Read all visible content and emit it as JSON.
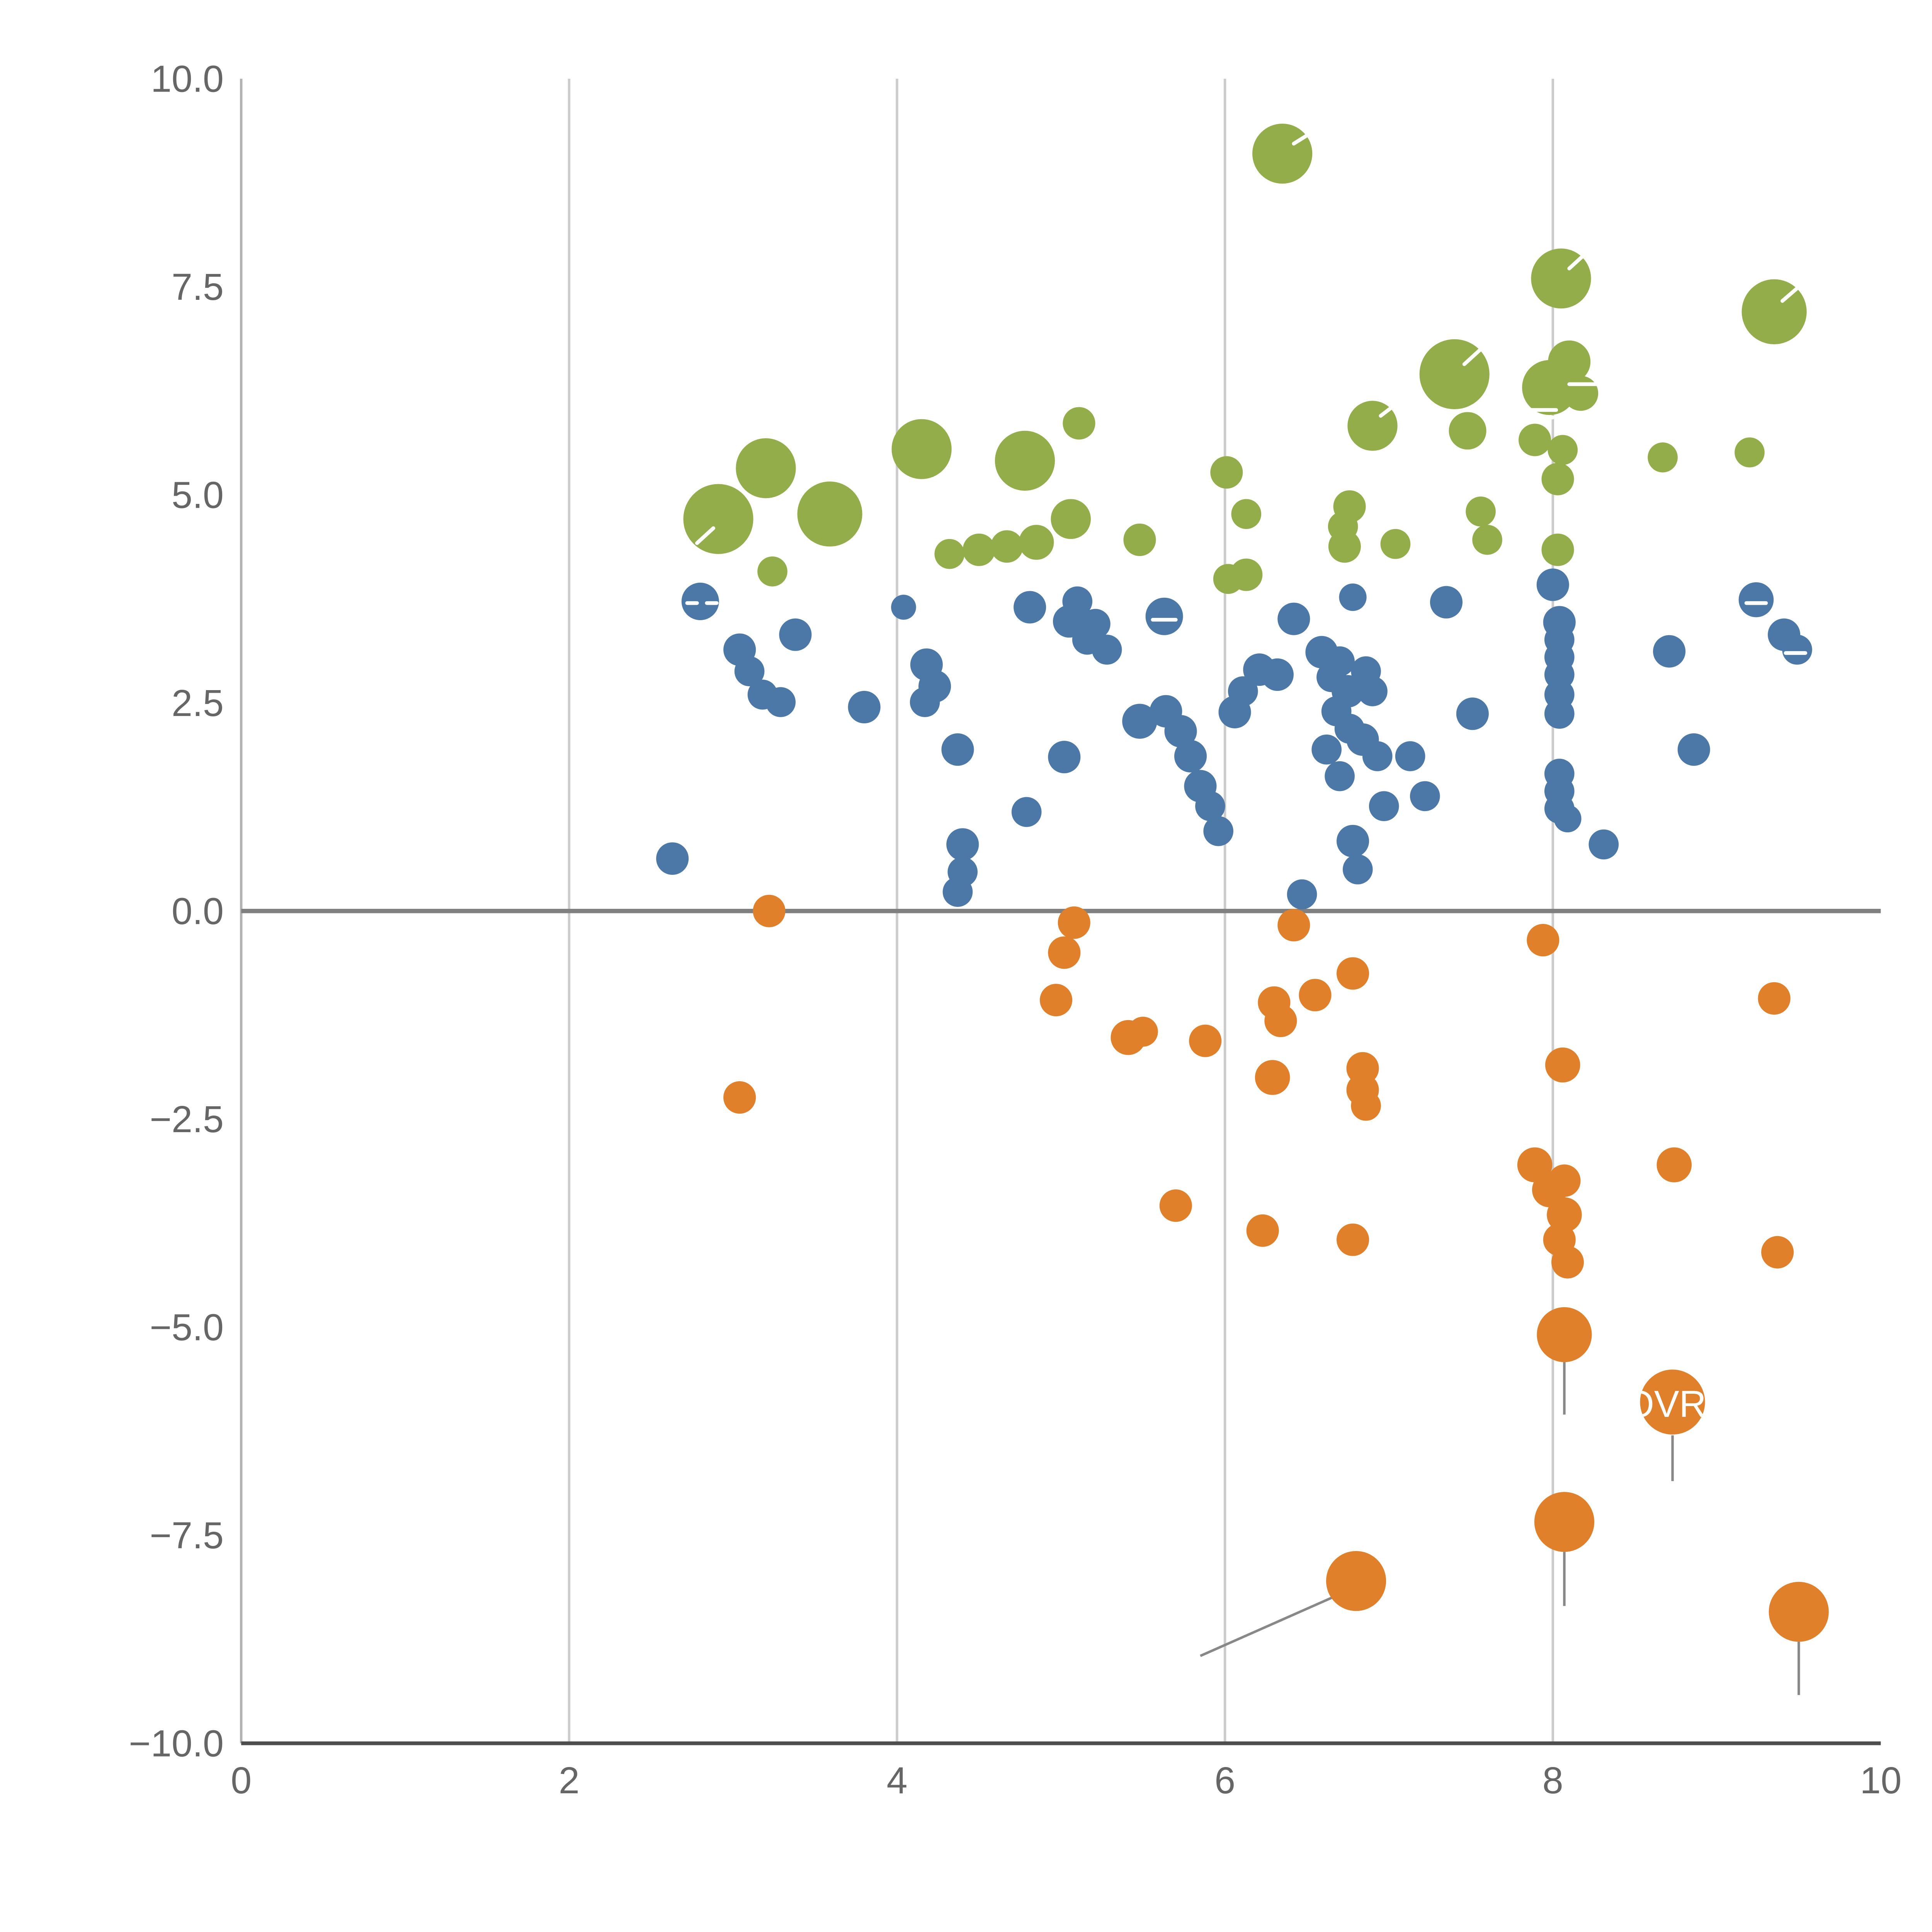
{
  "chart_data": {
    "type": "scatter",
    "title": "",
    "xlabel": "",
    "ylabel": "",
    "xlim": [
      0,
      10
    ],
    "ylim": [
      -10,
      10
    ],
    "x_ticks": {
      "values": [
        0,
        2,
        4,
        6,
        8,
        10
      ],
      "labels": [
        "0",
        "2",
        "4",
        "6",
        "8",
        "10"
      ]
    },
    "y_ticks": {
      "values": [
        10,
        7.5,
        5,
        2.5,
        0,
        -2.5,
        -5,
        -7.5,
        -10
      ],
      "labels": [
        "10.0",
        "7.5",
        "5.0",
        "2.5",
        "0.0",
        "−2.5",
        "−5.0",
        "−7.5",
        "−10.0"
      ]
    },
    "grid": {
      "vertical_values": [
        2,
        4,
        6,
        8
      ],
      "horizontal": false
    },
    "zero_line_y": 0,
    "legend": "none",
    "series": [
      {
        "name": "green",
        "color": "#94ad4b",
        "points": [
          [
            6.35,
            9.1,
            24
          ],
          [
            8.05,
            7.6,
            24
          ],
          [
            9.35,
            7.2,
            26
          ],
          [
            7.4,
            6.45,
            28
          ],
          [
            8.1,
            6.6,
            17
          ],
          [
            7.98,
            6.29,
            22
          ],
          [
            8.17,
            6.22,
            14
          ],
          [
            6.9,
            5.83,
            20
          ],
          [
            7.48,
            5.77,
            15
          ],
          [
            7.89,
            5.66,
            13
          ],
          [
            8.06,
            5.54,
            12
          ],
          [
            8.67,
            5.45,
            12
          ],
          [
            9.2,
            5.51,
            12
          ],
          [
            5.11,
            5.86,
            13
          ],
          [
            4.15,
            5.55,
            24
          ],
          [
            4.78,
            5.41,
            24
          ],
          [
            3.2,
            5.32,
            24
          ],
          [
            6.01,
            5.27,
            13
          ],
          [
            2.91,
            4.71,
            28
          ],
          [
            3.59,
            4.77,
            26
          ],
          [
            5.06,
            4.71,
            16
          ],
          [
            6.13,
            4.77,
            12
          ],
          [
            6.76,
            4.86,
            13
          ],
          [
            6.72,
            4.62,
            12
          ],
          [
            6.73,
            4.38,
            13
          ],
          [
            4.5,
            4.34,
            13
          ],
          [
            4.67,
            4.38,
            13
          ],
          [
            4.85,
            4.43,
            14
          ],
          [
            4.32,
            4.29,
            12
          ],
          [
            5.48,
            4.46,
            13
          ],
          [
            3.24,
            4.08,
            12
          ],
          [
            6.13,
            4.04,
            13
          ],
          [
            6.02,
            3.99,
            12
          ],
          [
            7.04,
            4.41,
            12
          ],
          [
            7.56,
            4.8,
            12
          ],
          [
            7.6,
            4.46,
            12
          ],
          [
            8.03,
            5.19,
            13
          ],
          [
            8.03,
            4.34,
            13
          ]
        ]
      },
      {
        "name": "blue",
        "color": "#4c78a8",
        "points": [
          [
            2.8,
            3.72,
            15
          ],
          [
            2.63,
            0.63,
            13
          ],
          [
            3.04,
            3.14,
            13
          ],
          [
            3.1,
            2.88,
            12
          ],
          [
            3.18,
            2.6,
            12
          ],
          [
            3.29,
            2.51,
            12
          ],
          [
            3.38,
            3.32,
            13
          ],
          [
            3.8,
            2.45,
            13
          ],
          [
            4.04,
            3.65,
            10
          ],
          [
            4.18,
            2.96,
            13
          ],
          [
            4.23,
            2.7,
            13
          ],
          [
            4.17,
            2.51,
            12
          ],
          [
            4.37,
            1.94,
            13
          ],
          [
            4.4,
            0.8,
            13
          ],
          [
            4.4,
            0.47,
            12
          ],
          [
            4.37,
            0.23,
            12
          ],
          [
            4.79,
            1.19,
            12
          ],
          [
            5.02,
            1.85,
            13
          ],
          [
            4.81,
            3.65,
            13
          ],
          [
            5.05,
            3.48,
            13
          ],
          [
            5.1,
            3.72,
            12
          ],
          [
            5.16,
            3.26,
            12
          ],
          [
            5.21,
            3.45,
            12
          ],
          [
            5.28,
            3.14,
            12
          ],
          [
            5.63,
            3.54,
            15
          ],
          [
            5.48,
            2.28,
            14
          ],
          [
            5.64,
            2.4,
            13
          ],
          [
            5.73,
            2.16,
            13
          ],
          [
            5.79,
            1.86,
            13
          ],
          [
            5.85,
            1.5,
            13
          ],
          [
            5.91,
            1.26,
            12
          ],
          [
            5.96,
            0.96,
            12
          ],
          [
            6.06,
            2.39,
            13
          ],
          [
            6.11,
            2.64,
            12
          ],
          [
            6.21,
            2.9,
            13
          ],
          [
            6.32,
            2.84,
            13
          ],
          [
            6.42,
            3.51,
            13
          ],
          [
            6.47,
            0.2,
            12
          ],
          [
            6.59,
            3.11,
            13
          ],
          [
            6.65,
            2.81,
            12
          ],
          [
            6.7,
            3.0,
            12
          ],
          [
            6.75,
            2.64,
            13
          ],
          [
            6.68,
            2.4,
            12
          ],
          [
            6.76,
            2.19,
            12
          ],
          [
            6.62,
            1.94,
            12
          ],
          [
            6.7,
            1.62,
            12
          ],
          [
            6.78,
            3.77,
            11
          ],
          [
            6.86,
            2.88,
            12
          ],
          [
            6.9,
            2.64,
            12
          ],
          [
            6.84,
            2.06,
            13
          ],
          [
            6.93,
            1.86,
            12
          ],
          [
            6.78,
            0.84,
            13
          ],
          [
            6.81,
            0.5,
            12
          ],
          [
            6.97,
            1.26,
            12
          ],
          [
            7.13,
            1.86,
            12
          ],
          [
            7.22,
            1.38,
            12
          ],
          [
            7.35,
            3.71,
            13
          ],
          [
            7.51,
            2.37,
            13
          ],
          [
            8.0,
            3.92,
            13
          ],
          [
            8.04,
            3.47,
            13
          ],
          [
            8.04,
            3.26,
            12
          ],
          [
            8.04,
            3.05,
            12
          ],
          [
            8.04,
            2.84,
            12
          ],
          [
            8.04,
            2.6,
            12
          ],
          [
            8.04,
            2.37,
            12
          ],
          [
            8.04,
            1.65,
            12
          ],
          [
            8.04,
            1.44,
            12
          ],
          [
            8.04,
            1.23,
            12
          ],
          [
            8.09,
            1.11,
            11
          ],
          [
            8.31,
            0.8,
            12
          ],
          [
            8.71,
            3.12,
            13
          ],
          [
            8.86,
            1.94,
            13
          ],
          [
            9.24,
            3.74,
            14
          ],
          [
            9.41,
            3.32,
            13
          ],
          [
            9.49,
            3.14,
            12
          ]
        ]
      },
      {
        "name": "orange",
        "color": "#e0802a",
        "points": [
          [
            3.22,
            0.0,
            13
          ],
          [
            3.04,
            -2.24,
            13
          ],
          [
            5.08,
            -0.14,
            13
          ],
          [
            5.02,
            -0.5,
            13
          ],
          [
            4.97,
            -1.07,
            13
          ],
          [
            5.41,
            -1.52,
            14
          ],
          [
            5.5,
            -1.45,
            12
          ],
          [
            5.88,
            -1.56,
            13
          ],
          [
            6.42,
            -0.17,
            13
          ],
          [
            6.3,
            -1.1,
            13
          ],
          [
            6.34,
            -1.32,
            13
          ],
          [
            6.55,
            -1.01,
            13
          ],
          [
            6.78,
            -0.75,
            13
          ],
          [
            6.29,
            -2.0,
            14
          ],
          [
            6.84,
            -1.89,
            13
          ],
          [
            6.84,
            -2.15,
            13
          ],
          [
            6.86,
            -2.34,
            12
          ],
          [
            5.7,
            -3.54,
            13
          ],
          [
            6.23,
            -3.84,
            13
          ],
          [
            6.78,
            -3.95,
            13
          ],
          [
            7.94,
            -0.35,
            13
          ],
          [
            8.06,
            -1.85,
            14
          ],
          [
            7.89,
            -3.05,
            14
          ],
          [
            7.98,
            -3.35,
            14
          ],
          [
            8.07,
            -3.24,
            13
          ],
          [
            8.07,
            -3.65,
            14
          ],
          [
            8.04,
            -3.95,
            13
          ],
          [
            8.09,
            -4.22,
            13
          ],
          [
            8.74,
            -3.05,
            14
          ],
          [
            9.35,
            -1.05,
            13
          ],
          [
            9.37,
            -4.1,
            13
          ],
          [
            8.07,
            -5.09,
            22
          ],
          [
            8.73,
            -5.9,
            26
          ],
          [
            8.07,
            -7.34,
            24
          ],
          [
            6.8,
            -8.05,
            24
          ],
          [
            9.5,
            -8.42,
            24
          ]
        ]
      }
    ],
    "leader_lines": [
      [
        5.85,
        -8.95,
        6.71,
        -8.2
      ],
      [
        8.07,
        -5.42,
        8.07,
        -6.05
      ],
      [
        8.73,
        -6.3,
        8.73,
        -6.85
      ],
      [
        8.07,
        -7.7,
        8.07,
        -8.35
      ],
      [
        9.5,
        -8.78,
        9.5,
        -9.42
      ]
    ],
    "white_fragments": [
      [
        6.42,
        9.22,
        6.55,
        9.38
      ],
      [
        8.1,
        7.72,
        8.2,
        7.9
      ],
      [
        9.4,
        7.33,
        9.5,
        7.5
      ],
      [
        7.46,
        6.57,
        7.56,
        6.75
      ],
      [
        6.95,
        5.95,
        7.05,
        6.1
      ],
      [
        2.88,
        4.6,
        2.78,
        4.42
      ],
      [
        7.82,
        6.02,
        8.02,
        6.02
      ],
      [
        7.82,
        5.93,
        8.0,
        5.93
      ],
      [
        8.1,
        6.33,
        8.3,
        6.33
      ],
      [
        2.72,
        3.7,
        2.78,
        3.7
      ],
      [
        2.84,
        3.7,
        2.9,
        3.7
      ],
      [
        5.56,
        3.5,
        5.7,
        3.5
      ],
      [
        9.18,
        3.7,
        9.3,
        3.7
      ],
      [
        9.42,
        3.1,
        9.54,
        3.1
      ]
    ],
    "labels": [
      {
        "text": "OVR",
        "x": 8.44,
        "y": -5.92,
        "anchor": "start",
        "color": "#ffffff",
        "size": 30
      }
    ]
  },
  "style": {
    "grid_color": "#cccccc",
    "y_axis_color": "#b3b3b3",
    "x_axis_color": "#4d4d4d",
    "zero_line_color": "#808080",
    "tick_label_color": "#666666",
    "leader_line_color": "#888888",
    "fragment_color": "#ffffff"
  }
}
